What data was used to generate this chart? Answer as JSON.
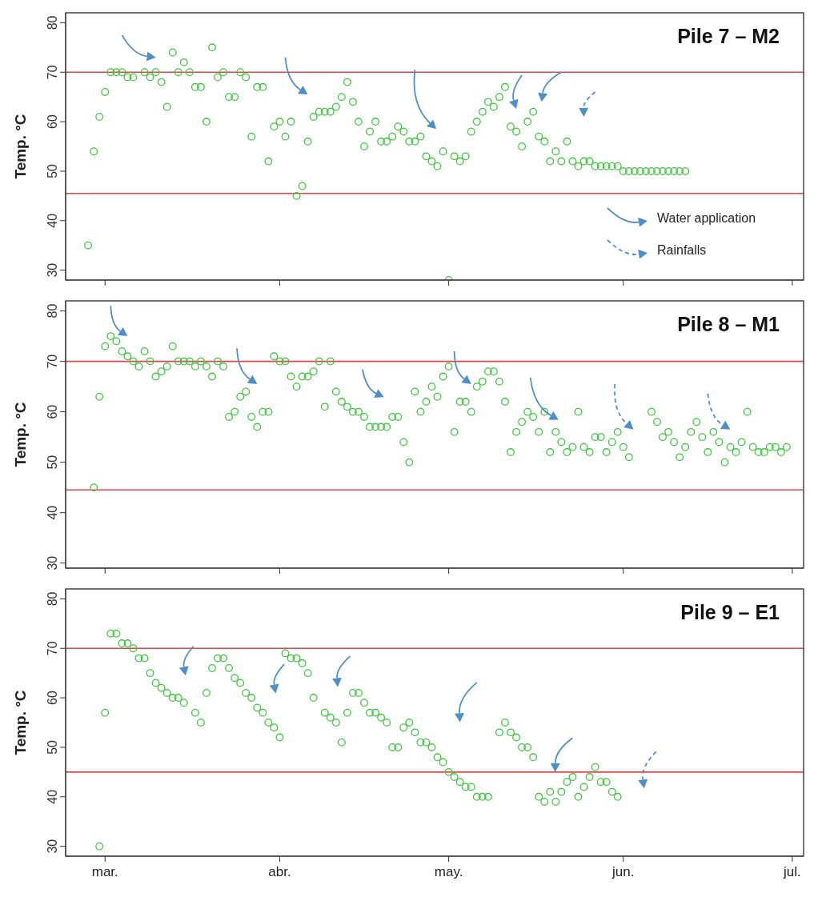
{
  "chart_data": [
    {
      "type": "scatter",
      "title": "Pile 7 – M2",
      "ylabel": "Temp. °C",
      "marker": "circle",
      "tick_labels": "y",
      "xlim": [
        "--02-22",
        "--07-03"
      ],
      "xticks": [
        {
          "value": "--03-01",
          "label": "mar."
        },
        {
          "value": "--04-01",
          "label": "abr."
        },
        {
          "value": "--05-01",
          "label": "may."
        },
        {
          "value": "--06-01",
          "label": "jun."
        },
        {
          "value": "--07-01",
          "label": "jul."
        }
      ],
      "ylim": [
        28,
        82
      ],
      "yticks": [
        30,
        40,
        50,
        60,
        70,
        80
      ],
      "ref_lines": [
        {
          "axis": "y",
          "value": 70,
          "color": "#e0474c"
        },
        {
          "axis": "y",
          "value": 45.5,
          "color": "#e0474c"
        }
      ],
      "annotations": [
        "Water application",
        "Rainfalls"
      ],
      "series": [
        {
          "color": "#3cc83c",
          "x": [
            "--02-26",
            "--02-27",
            "--02-28",
            "--03-01",
            "--03-02",
            "--03-03",
            "--03-04",
            "--03-05",
            "--03-06",
            "--03-08",
            "--03-09",
            "--03-10",
            "--03-11",
            "--03-12",
            "--03-13",
            "--03-14",
            "--03-15",
            "--03-16",
            "--03-17",
            "--03-18",
            "--03-19",
            "--03-20",
            "--03-21",
            "--03-22",
            "--03-23",
            "--03-24",
            "--03-25",
            "--03-26",
            "--03-27",
            "--03-28",
            "--03-29",
            "--03-30",
            "--03-31",
            "--04-01",
            "--04-02",
            "--04-03",
            "--04-04",
            "--04-05",
            "--04-06",
            "--04-07",
            "--04-08",
            "--04-09",
            "--04-10",
            "--04-11",
            "--04-12",
            "--04-13",
            "--04-14",
            "--04-15",
            "--04-16",
            "--04-17",
            "--04-18",
            "--04-19",
            "--04-20",
            "--04-21",
            "--04-22",
            "--04-23",
            "--04-24",
            "--04-25",
            "--04-26",
            "--04-27",
            "--04-28",
            "--04-29",
            "--04-30",
            "--05-01",
            "--05-02",
            "--05-03",
            "--05-04",
            "--05-05",
            "--05-06",
            "--05-07",
            "--05-08",
            "--05-09",
            "--05-10",
            "--05-11",
            "--05-12",
            "--05-13",
            "--05-14",
            "--05-15",
            "--05-16",
            "--05-17",
            "--05-18",
            "--05-19",
            "--05-20",
            "--05-21",
            "--05-22",
            "--05-23",
            "--05-24",
            "--05-25",
            "--05-26",
            "--05-27",
            "--05-28",
            "--05-29",
            "--05-30",
            "--05-31",
            "--06-01",
            "--06-02",
            "--06-03",
            "--06-04",
            "--06-05",
            "--06-06",
            "--06-07",
            "--06-08",
            "--06-09",
            "--06-10",
            "--06-11",
            "--06-12"
          ],
          "values": [
            35,
            54,
            61,
            66,
            70,
            70,
            70,
            69,
            69,
            70,
            69,
            70,
            68,
            63,
            74,
            70,
            72,
            70,
            67,
            67,
            60,
            75,
            69,
            70,
            65,
            65,
            70,
            69,
            57,
            67,
            67,
            52,
            59,
            60,
            57,
            60,
            45,
            47,
            56,
            61,
            62,
            62,
            62,
            63,
            65,
            68,
            64,
            60,
            55,
            58,
            60,
            56,
            56,
            57,
            59,
            58,
            56,
            56,
            57,
            53,
            52,
            51,
            54,
            28,
            53,
            52,
            53,
            58,
            60,
            62,
            64,
            63,
            65,
            67,
            59,
            58,
            55,
            60,
            62,
            57,
            56,
            52,
            54,
            52,
            56,
            52,
            51,
            52,
            52,
            51,
            51,
            51,
            51,
            51,
            50,
            50,
            50,
            50,
            50,
            50,
            50,
            50,
            50,
            50,
            50,
            50
          ]
        }
      ]
    },
    {
      "type": "scatter",
      "title": "Pile 8 – M1",
      "ylabel": "Temp. °C",
      "marker": "circle",
      "tick_labels": "y",
      "xlim": [
        "--02-22",
        "--07-03"
      ],
      "xticks": [
        {
          "value": "--03-01",
          "label": "mar."
        },
        {
          "value": "--04-01",
          "label": "abr."
        },
        {
          "value": "--05-01",
          "label": "may."
        },
        {
          "value": "--06-01",
          "label": "jun."
        },
        {
          "value": "--07-01",
          "label": "jul."
        }
      ],
      "ylim": [
        29,
        82
      ],
      "yticks": [
        30,
        40,
        50,
        60,
        70,
        80
      ],
      "ref_lines": [
        {
          "axis": "y",
          "value": 70,
          "color": "#e0474c"
        },
        {
          "axis": "y",
          "value": 44.5,
          "color": "#e0474c"
        }
      ],
      "series": [
        {
          "color": "#3cc83c",
          "x": [
            "--02-27",
            "--02-28",
            "--03-01",
            "--03-02",
            "--03-03",
            "--03-04",
            "--03-05",
            "--03-06",
            "--03-07",
            "--03-08",
            "--03-09",
            "--03-10",
            "--03-11",
            "--03-12",
            "--03-13",
            "--03-14",
            "--03-15",
            "--03-16",
            "--03-17",
            "--03-18",
            "--03-19",
            "--03-20",
            "--03-21",
            "--03-22",
            "--03-23",
            "--03-24",
            "--03-25",
            "--03-26",
            "--03-27",
            "--03-28",
            "--03-29",
            "--03-30",
            "--03-31",
            "--04-01",
            "--04-02",
            "--04-03",
            "--04-04",
            "--04-05",
            "--04-06",
            "--04-07",
            "--04-08",
            "--04-09",
            "--04-10",
            "--04-11",
            "--04-12",
            "--04-13",
            "--04-14",
            "--04-15",
            "--04-16",
            "--04-17",
            "--04-18",
            "--04-19",
            "--04-20",
            "--04-21",
            "--04-22",
            "--04-23",
            "--04-24",
            "--04-25",
            "--04-26",
            "--04-27",
            "--04-28",
            "--04-29",
            "--04-30",
            "--05-01",
            "--05-02",
            "--05-03",
            "--05-04",
            "--05-05",
            "--05-06",
            "--05-07",
            "--05-08",
            "--05-09",
            "--05-10",
            "--05-11",
            "--05-12",
            "--05-13",
            "--05-14",
            "--05-15",
            "--05-16",
            "--05-17",
            "--05-18",
            "--05-19",
            "--05-20",
            "--05-21",
            "--05-22",
            "--05-23",
            "--05-24",
            "--05-25",
            "--05-26",
            "--05-27",
            "--05-28",
            "--05-29",
            "--05-30",
            "--05-31",
            "--06-01",
            "--06-02",
            "--06-06",
            "--06-07",
            "--06-08",
            "--06-09",
            "--06-10",
            "--06-11",
            "--06-12",
            "--06-13",
            "--06-14",
            "--06-15",
            "--06-16",
            "--06-17",
            "--06-18",
            "--06-19",
            "--06-20",
            "--06-21",
            "--06-22",
            "--06-23",
            "--06-24",
            "--06-25",
            "--06-26",
            "--06-27",
            "--06-28",
            "--06-29",
            "--06-30"
          ],
          "values": [
            45,
            63,
            73,
            75,
            74,
            72,
            71,
            70,
            69,
            72,
            70,
            67,
            68,
            69,
            73,
            70,
            70,
            70,
            69,
            70,
            69,
            67,
            70,
            69,
            59,
            60,
            63,
            64,
            59,
            57,
            60,
            60,
            71,
            70,
            70,
            67,
            65,
            67,
            67,
            68,
            70,
            61,
            70,
            64,
            62,
            61,
            60,
            60,
            59,
            57,
            57,
            57,
            57,
            59,
            59,
            54,
            50,
            64,
            60,
            62,
            65,
            63,
            67,
            69,
            56,
            62,
            62,
            60,
            65,
            66,
            68,
            68,
            66,
            62,
            52,
            56,
            58,
            60,
            59,
            56,
            60,
            52,
            56,
            54,
            52,
            53,
            60,
            53,
            52,
            55,
            55,
            52,
            54,
            56,
            53,
            51,
            60,
            58,
            55,
            56,
            54,
            51,
            53,
            56,
            58,
            55,
            52,
            56,
            54,
            50,
            53,
            52,
            54,
            60,
            53,
            52,
            52,
            53,
            53,
            52,
            53
          ]
        }
      ]
    },
    {
      "type": "scatter",
      "title": "Pile 9 – E1",
      "ylabel": "Temp. °C",
      "marker": "circle",
      "xlim": [
        "--02-22",
        "--07-03"
      ],
      "xticks": [
        {
          "value": "--03-01",
          "label": "mar."
        },
        {
          "value": "--04-01",
          "label": "abr."
        },
        {
          "value": "--05-01",
          "label": "may."
        },
        {
          "value": "--06-01",
          "label": "jun."
        },
        {
          "value": "--07-01",
          "label": "jul."
        }
      ],
      "ylim": [
        28,
        82
      ],
      "yticks": [
        30,
        40,
        50,
        60,
        70,
        80
      ],
      "ref_lines": [
        {
          "axis": "y",
          "value": 70,
          "color": "#e0474c"
        },
        {
          "axis": "y",
          "value": 45,
          "color": "#e0474c"
        }
      ],
      "series": [
        {
          "color": "#3cc83c",
          "x": [
            "--02-28",
            "--03-01",
            "--03-02",
            "--03-03",
            "--03-04",
            "--03-05",
            "--03-06",
            "--03-07",
            "--03-08",
            "--03-09",
            "--03-10",
            "--03-11",
            "--03-12",
            "--03-13",
            "--03-14",
            "--03-15",
            "--03-17",
            "--03-18",
            "--03-19",
            "--03-20",
            "--03-21",
            "--03-22",
            "--03-23",
            "--03-24",
            "--03-25",
            "--03-26",
            "--03-27",
            "--03-28",
            "--03-29",
            "--03-30",
            "--03-31",
            "--04-01",
            "--04-02",
            "--04-03",
            "--04-04",
            "--04-05",
            "--04-06",
            "--04-07",
            "--04-09",
            "--04-10",
            "--04-11",
            "--04-12",
            "--04-13",
            "--04-14",
            "--04-15",
            "--04-16",
            "--04-17",
            "--04-18",
            "--04-19",
            "--04-20",
            "--04-21",
            "--04-22",
            "--04-23",
            "--04-24",
            "--04-25",
            "--04-26",
            "--04-27",
            "--04-28",
            "--04-29",
            "--04-30",
            "--05-01",
            "--05-02",
            "--05-03",
            "--05-04",
            "--05-05",
            "--05-06",
            "--05-07",
            "--05-08",
            "--05-10",
            "--05-11",
            "--05-12",
            "--05-13",
            "--05-14",
            "--05-15",
            "--05-16",
            "--05-17",
            "--05-18",
            "--05-19",
            "--05-20",
            "--05-21",
            "--05-22",
            "--05-23",
            "--05-24",
            "--05-25",
            "--05-26",
            "--05-27",
            "--05-28",
            "--05-29",
            "--05-30",
            "--05-31"
          ],
          "values": [
            30,
            57,
            73,
            73,
            71,
            71,
            70,
            68,
            68,
            65,
            63,
            62,
            61,
            60,
            60,
            59,
            57,
            55,
            61,
            66,
            68,
            68,
            66,
            64,
            63,
            61,
            60,
            58,
            57,
            55,
            54,
            52,
            69,
            68,
            68,
            67,
            65,
            60,
            57,
            56,
            55,
            51,
            57,
            61,
            61,
            59,
            57,
            57,
            56,
            55,
            50,
            50,
            54,
            55,
            53,
            51,
            51,
            50,
            48,
            47,
            45,
            44,
            43,
            42,
            42,
            40,
            40,
            40,
            53,
            55,
            53,
            52,
            50,
            50,
            48,
            40,
            39,
            41,
            39,
            41,
            43,
            44,
            40,
            42,
            44,
            46,
            43,
            43,
            41,
            40
          ]
        }
      ]
    }
  ]
}
